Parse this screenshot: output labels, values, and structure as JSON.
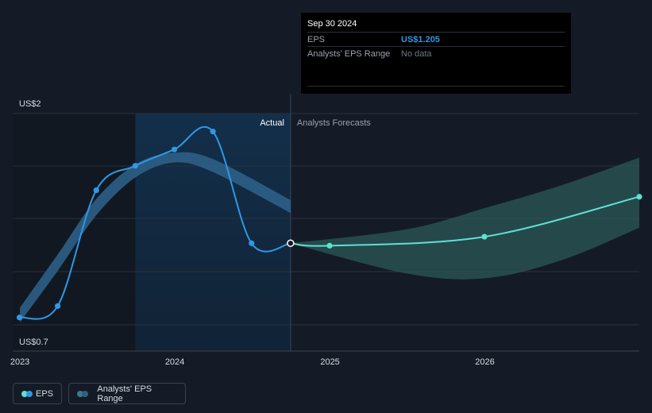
{
  "tooltip": {
    "date": "Sep 30 2024",
    "eps_label": "EPS",
    "eps_value": "US$1.205",
    "range_label": "Analysts' EPS Range",
    "range_value": "No data"
  },
  "legend": {
    "eps_label": "EPS",
    "range_label": "Analysts' EPS Range"
  },
  "colors": {
    "background": "#151b26",
    "eps_line": "#2f98e6",
    "forecast_line": "#5fe0d1",
    "range_band": "#2e5f86",
    "forecast_band": "#2b5a58",
    "highlight_region": "#13304c"
  },
  "chart_data": {
    "type": "line",
    "ytick_labels": [
      "US$2",
      "US$0.7"
    ],
    "ylim": [
      0.7,
      2.0
    ],
    "xtick_labels": [
      "2023",
      "2024",
      "2025",
      "2026"
    ],
    "xlim": [
      "2022-12-15",
      "2026-12-31"
    ],
    "region_labels": {
      "actual": "Actual",
      "forecast": "Analysts Forecasts"
    },
    "highlight_start": "2023-09-30",
    "divider": "2024-09-30",
    "grid": true,
    "legend_position": "bottom-left",
    "series": [
      {
        "name": "EPS",
        "role": "actual",
        "points": [
          {
            "x": "2022-12-31",
            "y": 0.75
          },
          {
            "x": "2023-03-31",
            "y": 0.82
          },
          {
            "x": "2023-06-30",
            "y": 1.53
          },
          {
            "x": "2023-09-30",
            "y": 1.68
          },
          {
            "x": "2023-12-31",
            "y": 1.78
          },
          {
            "x": "2024-03-31",
            "y": 1.89
          },
          {
            "x": "2024-06-30",
            "y": 1.205
          },
          {
            "x": "2024-09-30",
            "y": 1.205
          }
        ]
      },
      {
        "name": "Analysts' EPS Range",
        "role": "range",
        "upper": [
          {
            "x": "2023-01-01",
            "y": 0.81
          },
          {
            "x": "2023-04-01",
            "y": 1.14
          },
          {
            "x": "2023-07-01",
            "y": 1.48
          },
          {
            "x": "2023-10-01",
            "y": 1.69
          },
          {
            "x": "2023-12-31",
            "y": 1.76
          },
          {
            "x": "2024-04-01",
            "y": 1.72
          },
          {
            "x": "2024-09-30",
            "y": 1.47
          }
        ],
        "lower": [
          {
            "x": "2023-01-01",
            "y": 0.72
          },
          {
            "x": "2023-04-01",
            "y": 1.04
          },
          {
            "x": "2023-07-01",
            "y": 1.38
          },
          {
            "x": "2023-10-01",
            "y": 1.61
          },
          {
            "x": "2023-12-31",
            "y": 1.7
          },
          {
            "x": "2024-04-01",
            "y": 1.64
          },
          {
            "x": "2024-09-30",
            "y": 1.39
          }
        ]
      },
      {
        "name": "EPS",
        "role": "forecast",
        "points": [
          {
            "x": "2024-09-30",
            "y": 1.205
          },
          {
            "x": "2024-12-31",
            "y": 1.19
          },
          {
            "x": "2025-12-31",
            "y": 1.245
          },
          {
            "x": "2026-12-31",
            "y": 1.49
          }
        ],
        "upper": [
          {
            "x": "2024-09-30",
            "y": 1.205
          },
          {
            "x": "2025-06-30",
            "y": 1.29
          },
          {
            "x": "2025-12-31",
            "y": 1.42
          },
          {
            "x": "2026-06-30",
            "y": 1.56
          },
          {
            "x": "2026-12-31",
            "y": 1.73
          }
        ],
        "lower": [
          {
            "x": "2024-09-30",
            "y": 1.205
          },
          {
            "x": "2025-06-30",
            "y": 1.02
          },
          {
            "x": "2025-12-31",
            "y": 0.99
          },
          {
            "x": "2026-06-30",
            "y": 1.1
          },
          {
            "x": "2026-12-31",
            "y": 1.3
          }
        ]
      }
    ]
  }
}
